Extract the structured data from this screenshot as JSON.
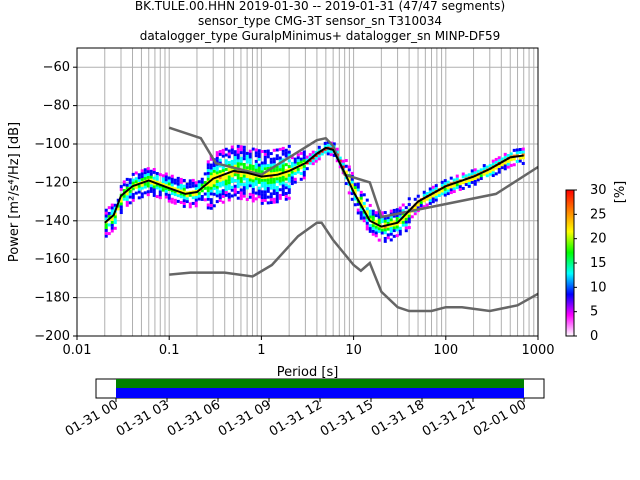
{
  "title_lines": [
    "BK.TULE.00.HHN   2019-01-30 -- 2019-01-31  (47/47 segments)",
    "sensor_type CMG-3T sensor_sn T310034",
    "datalogger_type GuralpMinimus+ datalogger_sn MINP-DF59"
  ],
  "chart_data": {
    "type": "heatmap",
    "xlabel": "Period [s]",
    "ylabel": "Power [m²/s⁴/Hz] [dB]",
    "xscale": "log",
    "xlim": [
      0.01,
      1000
    ],
    "ylim": [
      -200,
      -50
    ],
    "xticks": [
      {
        "v": 0.01,
        "label": "0.01"
      },
      {
        "v": 0.1,
        "label": "0.1"
      },
      {
        "v": 1,
        "label": "1"
      },
      {
        "v": 10,
        "label": "10"
      },
      {
        "v": 100,
        "label": "100"
      },
      {
        "v": 1000,
        "label": "1000"
      }
    ],
    "yticks": [
      -60,
      -80,
      -100,
      -120,
      -140,
      -160,
      -180,
      -200
    ],
    "grid": true,
    "mean_curve": [
      [
        0.02,
        -141
      ],
      [
        0.025,
        -137
      ],
      [
        0.03,
        -127
      ],
      [
        0.04,
        -122
      ],
      [
        0.06,
        -119
      ],
      [
        0.1,
        -123
      ],
      [
        0.15,
        -126
      ],
      [
        0.2,
        -125
      ],
      [
        0.3,
        -118
      ],
      [
        0.5,
        -114
      ],
      [
        0.7,
        -115
      ],
      [
        1,
        -117
      ],
      [
        1.5,
        -116
      ],
      [
        2,
        -114
      ],
      [
        3,
        -110
      ],
      [
        4,
        -105
      ],
      [
        5,
        -102
      ],
      [
        6,
        -103
      ],
      [
        8,
        -115
      ],
      [
        10,
        -125
      ],
      [
        15,
        -140
      ],
      [
        20,
        -143
      ],
      [
        30,
        -141
      ],
      [
        50,
        -130
      ],
      [
        100,
        -122
      ],
      [
        200,
        -117
      ],
      [
        300,
        -113
      ],
      [
        500,
        -107
      ],
      [
        700,
        -106
      ]
    ],
    "nhnm": [
      [
        0.1,
        -91.5
      ],
      [
        0.22,
        -97
      ],
      [
        0.32,
        -110
      ],
      [
        1,
        -116
      ],
      [
        4,
        -98
      ],
      [
        5,
        -97
      ],
      [
        6,
        -101
      ],
      [
        8,
        -116
      ],
      [
        15,
        -120
      ],
      [
        20,
        -138
      ],
      [
        350,
        -126
      ],
      [
        1000,
        -112
      ]
    ],
    "nlnm": [
      [
        0.1,
        -168
      ],
      [
        0.17,
        -167
      ],
      [
        0.4,
        -167
      ],
      [
        0.8,
        -169
      ],
      [
        1.3,
        -163
      ],
      [
        2.5,
        -148
      ],
      [
        4,
        -141
      ],
      [
        4.5,
        -141
      ],
      [
        6,
        -150
      ],
      [
        10,
        -163
      ],
      [
        12,
        -166
      ],
      [
        15,
        -162
      ],
      [
        20,
        -177
      ],
      [
        30,
        -185
      ],
      [
        40,
        -187
      ],
      [
        70,
        -187
      ],
      [
        100,
        -185
      ],
      [
        150,
        -185
      ],
      [
        300,
        -187
      ],
      [
        600,
        -184
      ],
      [
        1000,
        -178
      ]
    ],
    "colorbar": {
      "label": "[%]",
      "range": [
        0,
        30
      ],
      "ticks": [
        0,
        5,
        10,
        15,
        20,
        25,
        30
      ],
      "colors": [
        "#ffffff",
        "#ff00ff",
        "#0000ff",
        "#00ffff",
        "#00ff00",
        "#ffff00",
        "#ff8000",
        "#ff0000"
      ]
    },
    "timeline": {
      "ticks": [
        "01-31 00",
        "01-31 03",
        "01-31 06",
        "01-31 09",
        "01-31 12",
        "01-31 15",
        "01-31 18",
        "01-31 21",
        "02-01 00"
      ],
      "coverage_color": "#0000ff",
      "segment_color": "#008000"
    }
  }
}
